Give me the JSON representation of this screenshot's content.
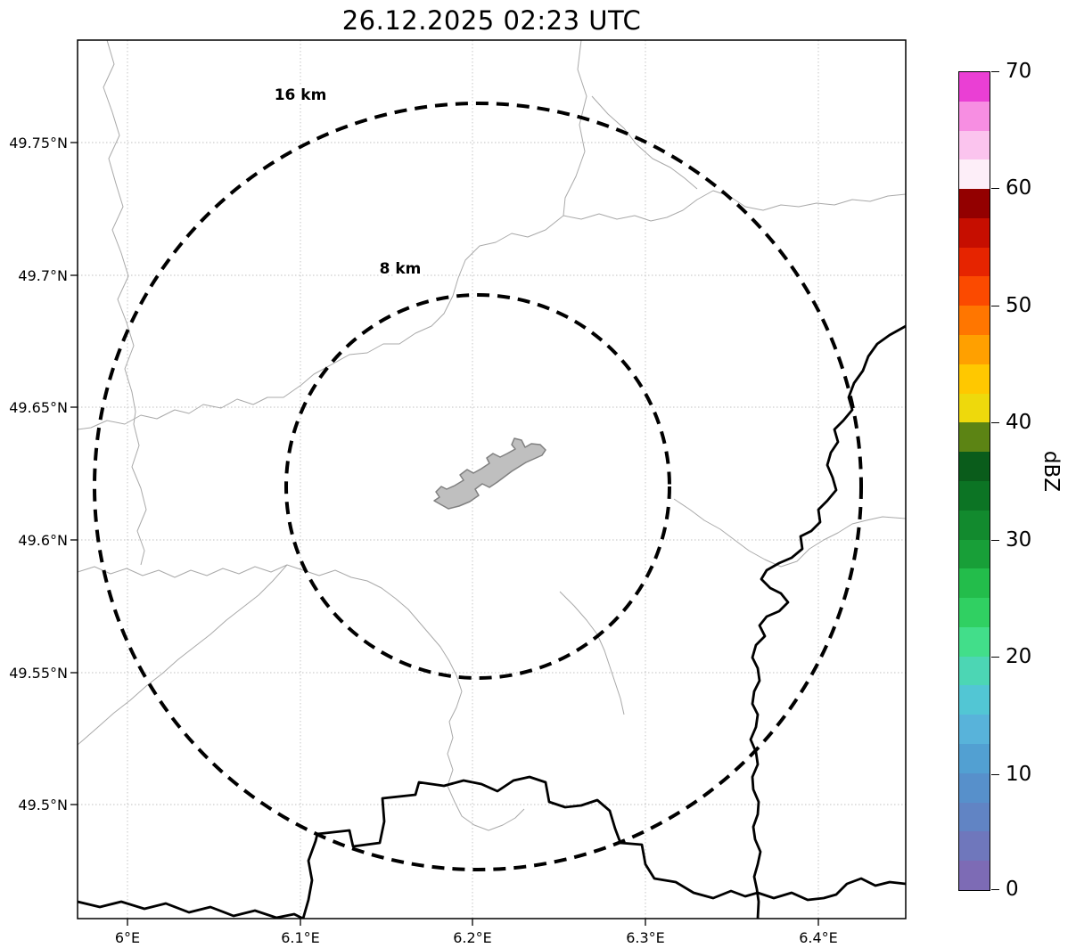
{
  "title": "26.12.2025 02:23 UTC",
  "map": {
    "range_ring_labels": {
      "outer": "16 km",
      "inner": "8 km"
    },
    "x_ticks": [
      "6°E",
      "6.1°E",
      "6.2°E",
      "6.3°E",
      "6.4°E"
    ],
    "y_ticks": [
      "49.75°N",
      "49.7°N",
      "49.65°N",
      "49.6°N",
      "49.55°N",
      "49.5°N"
    ]
  },
  "colorbar": {
    "label": "dBZ",
    "ticks": [
      "70",
      "60",
      "50",
      "40",
      "30",
      "20",
      "10",
      "0"
    ],
    "colors_bottom_to_top": [
      "#7d6bb5",
      "#6f77bc",
      "#6184c4",
      "#5790cb",
      "#52a0d2",
      "#58b3da",
      "#52c6d4",
      "#4cd6b4",
      "#42de8a",
      "#30d062",
      "#23bd4b",
      "#189f38",
      "#128a2e",
      "#0c7424",
      "#0a5c1b",
      "#5c8414",
      "#eed90c",
      "#ffc800",
      "#ffa000",
      "#ff7600",
      "#fb4a00",
      "#e62400",
      "#c60e00",
      "#930000",
      "#fdeef8",
      "#fbc4ee",
      "#f78ee2",
      "#ea3fd4"
    ]
  },
  "chart_data": {
    "type": "map",
    "title": "26.12.2025 02:23 UTC",
    "description": "Weather radar reflectivity map with range rings; no precipitation echoes visible",
    "x_axis": {
      "tick_labels": [
        "6°E",
        "6.1°E",
        "6.2°E",
        "6.3°E",
        "6.4°E"
      ]
    },
    "y_axis": {
      "tick_labels": [
        "49.75°N",
        "49.7°N",
        "49.65°N",
        "49.6°N",
        "49.55°N",
        "49.5°N"
      ]
    },
    "range_rings_km": [
      8,
      16
    ],
    "colorbar": {
      "label": "dBZ",
      "min": 0,
      "max": 70,
      "tick_values": [
        0,
        10,
        20,
        30,
        40,
        50,
        60,
        70
      ]
    },
    "grid": true,
    "legend_position": "right-colorbar"
  }
}
